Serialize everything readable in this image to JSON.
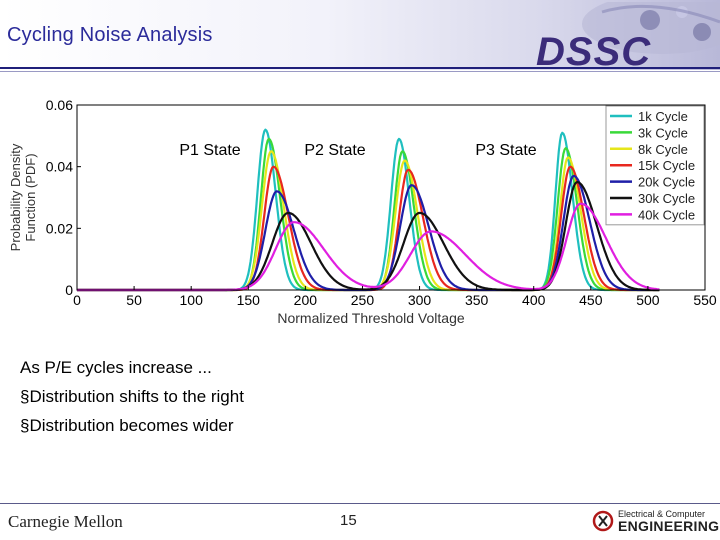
{
  "slide": {
    "title": "Cycling Noise Analysis",
    "logo_text": "DSSC",
    "bullets": [
      "As P/E cycles increase ...",
      "§Distribution shifts to the right",
      "§Distribution becomes wider"
    ],
    "footer_left": "Carnegie Mellon",
    "page_number": "15",
    "footer_right_line1": "Electrical & Computer",
    "footer_right_line2": "ENGINEERING"
  },
  "colors": {
    "title": "#2b2b9a",
    "rule": "#1f1f7a"
  },
  "chart_data": {
    "type": "line",
    "xlabel": "Normalized Threshold Voltage",
    "ylabel": "Probability Density Function (PDF)",
    "xlim": [
      0,
      550
    ],
    "ylim": [
      0,
      0.06
    ],
    "xticks": [
      0,
      50,
      100,
      150,
      200,
      250,
      300,
      350,
      400,
      450,
      500,
      550
    ],
    "yticks": [
      0,
      0.02,
      0.04,
      0.06
    ],
    "ytick_labels": [
      "0",
      "0.02",
      "0.04",
      "0.06"
    ],
    "legend_position": "top-right",
    "annotations": [
      "P1 State",
      "P2 State",
      "P3 State"
    ],
    "series": [
      {
        "name": "1k Cycle",
        "color": "#1fbfbf",
        "peaks": [
          [
            165,
            0.052,
            7,
            9
          ],
          [
            282,
            0.049,
            7,
            9
          ],
          [
            425,
            0.051,
            6,
            9
          ]
        ]
      },
      {
        "name": "3k Cycle",
        "color": "#39d939",
        "peaks": [
          [
            168,
            0.049,
            7,
            10
          ],
          [
            285,
            0.045,
            7,
            10
          ],
          [
            428,
            0.046,
            7,
            10
          ]
        ]
      },
      {
        "name": "8k Cycle",
        "color": "#e6e61a",
        "peaks": [
          [
            170,
            0.045,
            8,
            11
          ],
          [
            287,
            0.042,
            8,
            11
          ],
          [
            430,
            0.043,
            7,
            11
          ]
        ]
      },
      {
        "name": "15k Cycle",
        "color": "#e8281f",
        "peaks": [
          [
            172,
            0.04,
            8,
            13
          ],
          [
            290,
            0.039,
            8,
            13
          ],
          [
            432,
            0.04,
            8,
            12
          ]
        ]
      },
      {
        "name": "20k Cycle",
        "color": "#1f1fa8",
        "peaks": [
          [
            175,
            0.032,
            10,
            15
          ],
          [
            293,
            0.034,
            10,
            15
          ],
          [
            435,
            0.037,
            9,
            14
          ]
        ]
      },
      {
        "name": "30k Cycle",
        "color": "#111111",
        "peaks": [
          [
            185,
            0.025,
            14,
            20
          ],
          [
            300,
            0.025,
            14,
            21
          ],
          [
            438,
            0.035,
            10,
            17
          ]
        ]
      },
      {
        "name": "40k Cycle",
        "color": "#e01fe0",
        "peaks": [
          [
            190,
            0.022,
            16,
            26
          ],
          [
            310,
            0.019,
            18,
            30
          ],
          [
            441,
            0.028,
            12,
            22
          ]
        ]
      }
    ]
  }
}
